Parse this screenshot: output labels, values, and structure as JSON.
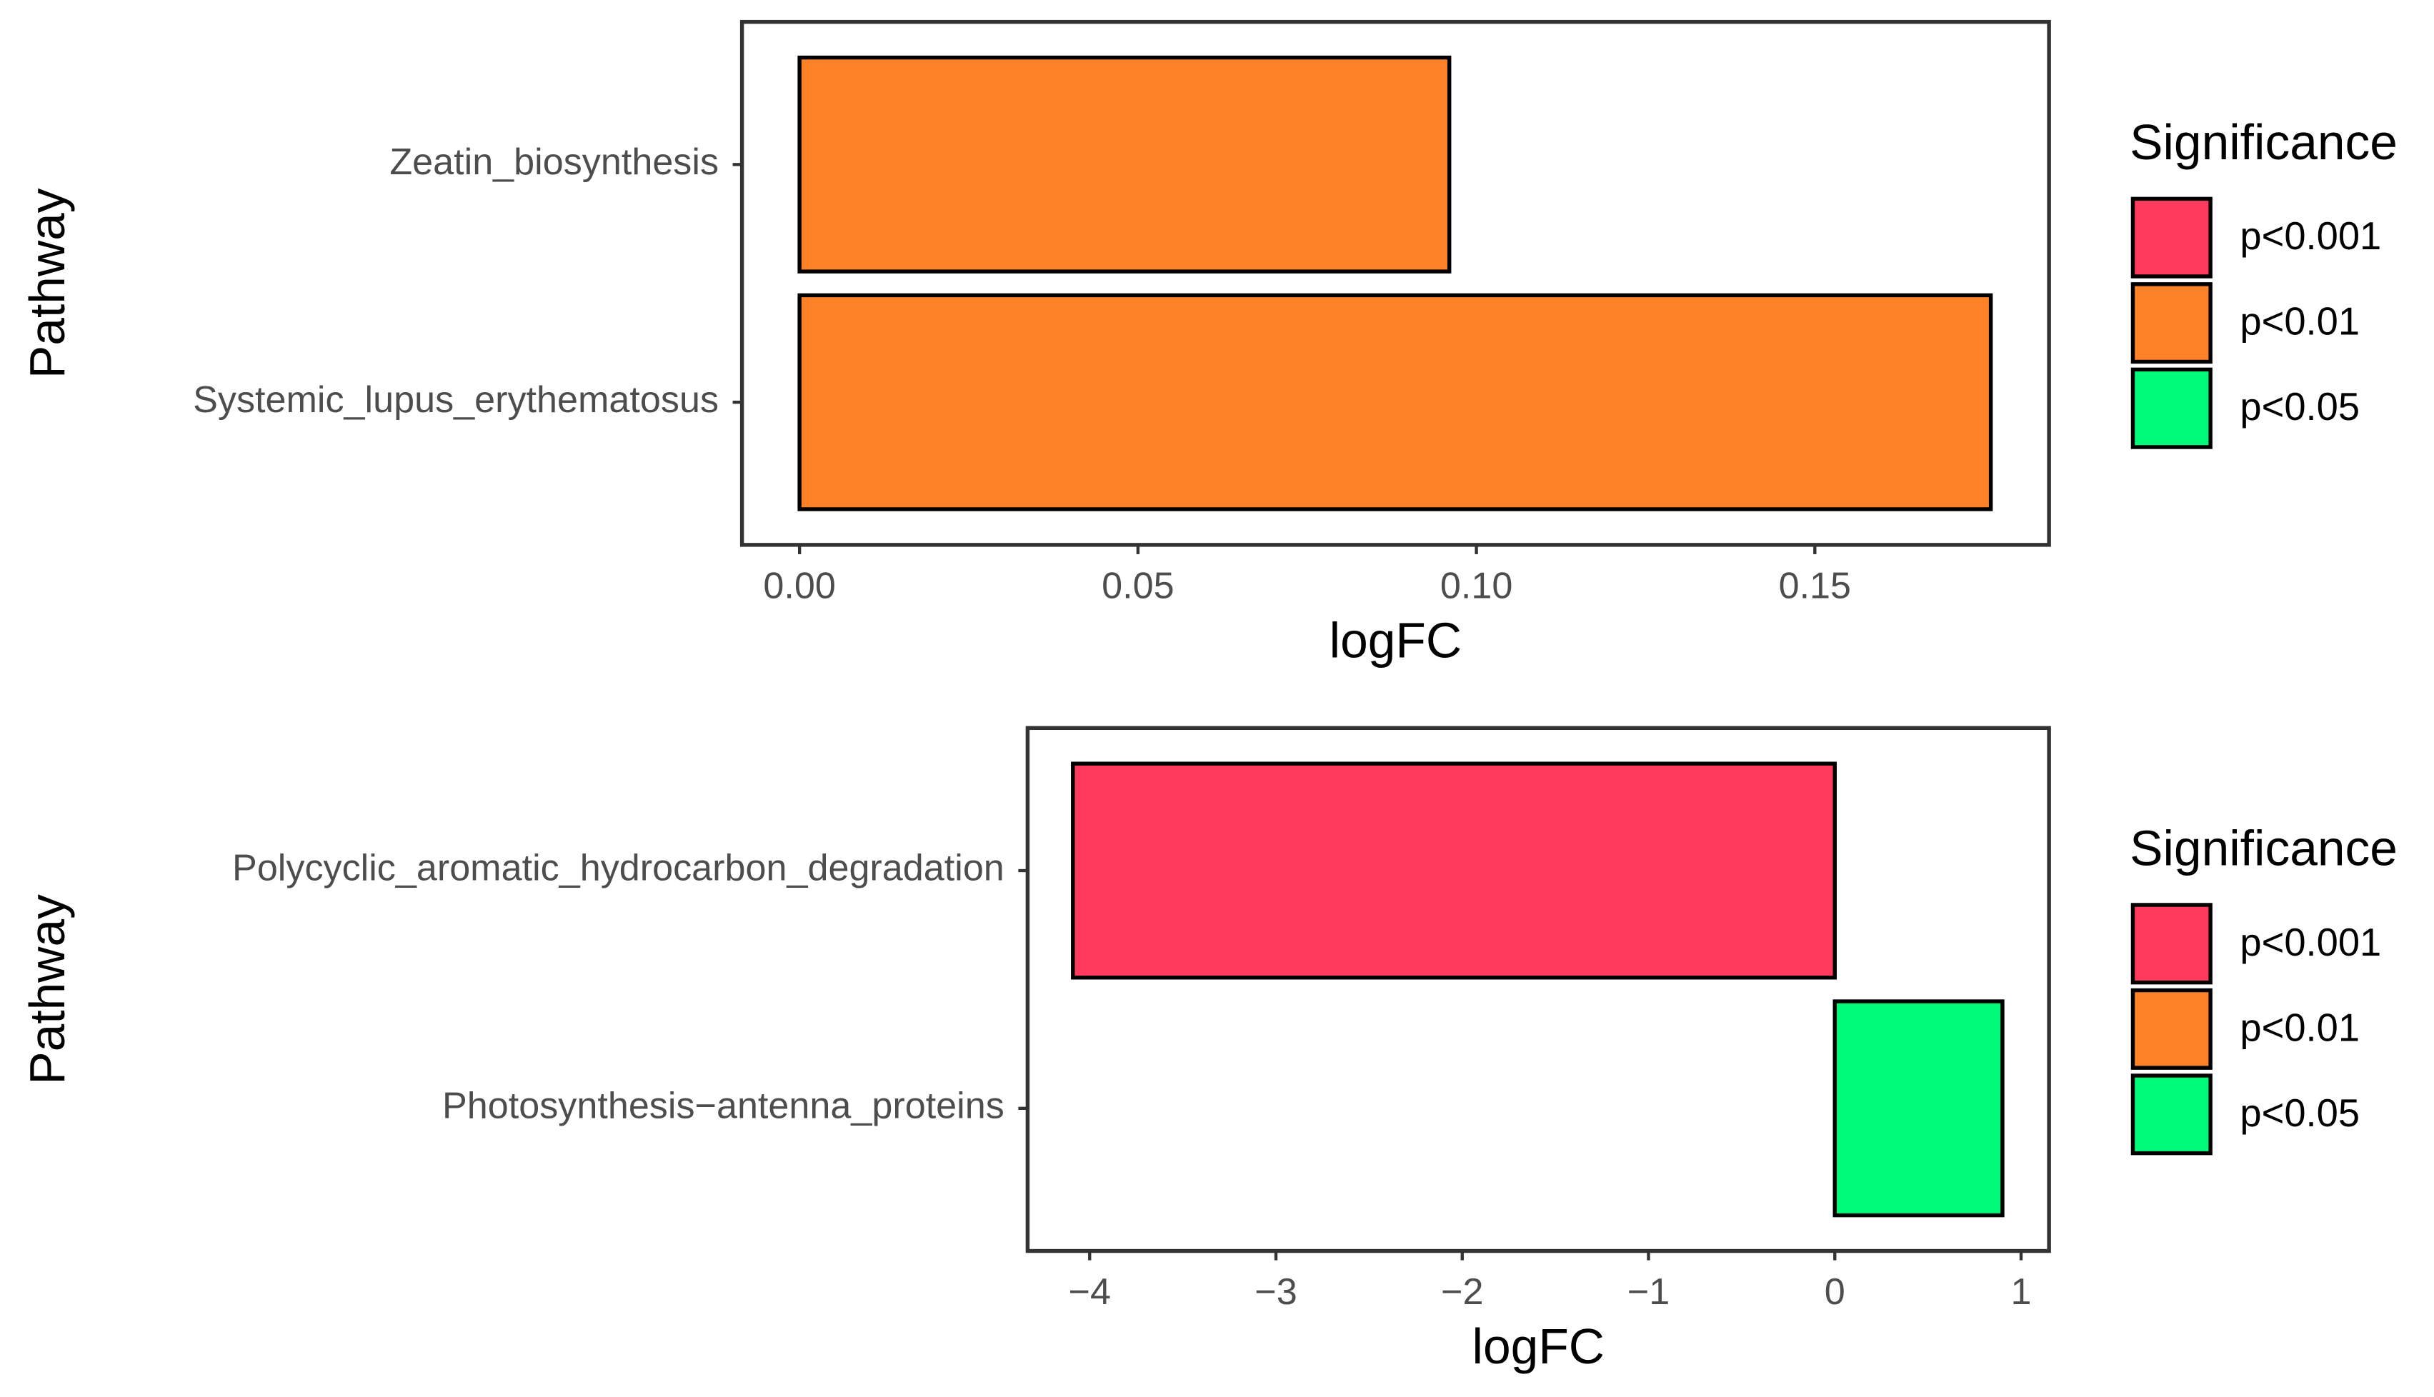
{
  "chart_data": [
    {
      "type": "barh",
      "categories": [
        "Zeatin_biosynthesis",
        "Systemic_lupus_erythematosus"
      ],
      "values": [
        0.096,
        0.176
      ],
      "bar_colors": [
        "#fd8126",
        "#fd8126"
      ],
      "xlabel": "logFC",
      "ylabel": "Pathway",
      "xlim": [
        -0.0085,
        0.1846
      ],
      "xticks": [
        {
          "value": 0,
          "label": "0.00"
        },
        {
          "value": 0.05,
          "label": "0.05"
        },
        {
          "value": 0.1,
          "label": "0.10"
        },
        {
          "value": 0.15,
          "label": "0.15"
        }
      ],
      "legend": {
        "title": "Significance",
        "items": [
          {
            "label": "p<0.001",
            "color": "#ff3a5c"
          },
          {
            "label": "p<0.01",
            "color": "#fd8126"
          },
          {
            "label": "p<0.05",
            "color": "#00fa7a"
          }
        ]
      }
    },
    {
      "type": "barh",
      "categories": [
        "Polycyclic_aromatic_hydrocarbon_degradation",
        "Photosynthesis−antenna_proteins"
      ],
      "values": [
        -4.09,
        0.9
      ],
      "bar_colors": [
        "#ff3a5c",
        "#00fa7a"
      ],
      "xlabel": "logFC",
      "ylabel": "Pathway",
      "xlim": [
        -4.333,
        1.15
      ],
      "xticks": [
        {
          "value": -4,
          "label": "−4"
        },
        {
          "value": -3,
          "label": "−3"
        },
        {
          "value": -2,
          "label": "−2"
        },
        {
          "value": -1,
          "label": "−1"
        },
        0,
        1
      ],
      "legend": {
        "title": "Significance",
        "items": [
          {
            "label": "p<0.001",
            "color": "#ff3a5c"
          },
          {
            "label": "p<0.01",
            "color": "#fd8126"
          },
          {
            "label": "p<0.05",
            "color": "#00fa7a"
          }
        ]
      }
    }
  ]
}
